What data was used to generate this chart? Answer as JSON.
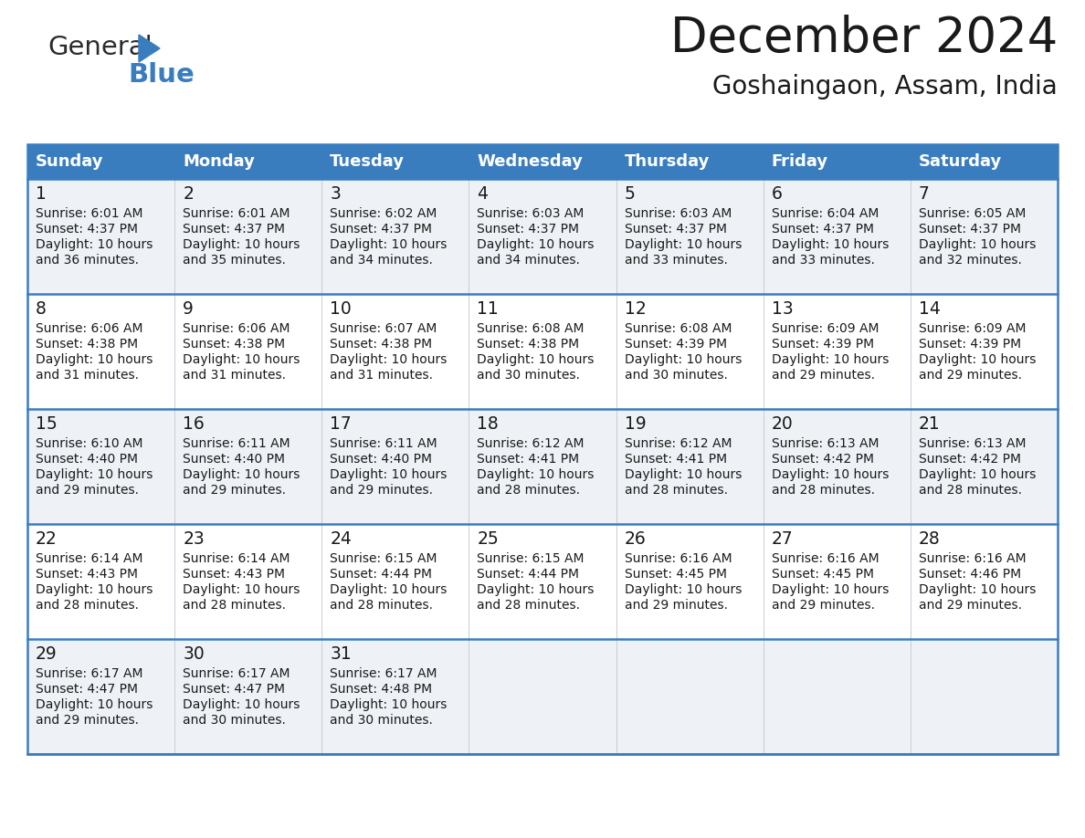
{
  "title": "December 2024",
  "subtitle": "Goshaingaon, Assam, India",
  "header_color": "#3a7dbf",
  "header_text_color": "#ffffff",
  "border_color": "#3a7dbf",
  "cell_bg_odd": "#eef2f6",
  "cell_bg_even": "#ffffff",
  "text_color": "#1a1a1a",
  "days_of_week": [
    "Sunday",
    "Monday",
    "Tuesday",
    "Wednesday",
    "Thursday",
    "Friday",
    "Saturday"
  ],
  "weeks": [
    [
      {
        "day": 1,
        "sunrise": "6:01 AM",
        "sunset": "4:37 PM",
        "daylight": "10 hours and 36 minutes."
      },
      {
        "day": 2,
        "sunrise": "6:01 AM",
        "sunset": "4:37 PM",
        "daylight": "10 hours and 35 minutes."
      },
      {
        "day": 3,
        "sunrise": "6:02 AM",
        "sunset": "4:37 PM",
        "daylight": "10 hours and 34 minutes."
      },
      {
        "day": 4,
        "sunrise": "6:03 AM",
        "sunset": "4:37 PM",
        "daylight": "10 hours and 34 minutes."
      },
      {
        "day": 5,
        "sunrise": "6:03 AM",
        "sunset": "4:37 PM",
        "daylight": "10 hours and 33 minutes."
      },
      {
        "day": 6,
        "sunrise": "6:04 AM",
        "sunset": "4:37 PM",
        "daylight": "10 hours and 33 minutes."
      },
      {
        "day": 7,
        "sunrise": "6:05 AM",
        "sunset": "4:37 PM",
        "daylight": "10 hours and 32 minutes."
      }
    ],
    [
      {
        "day": 8,
        "sunrise": "6:06 AM",
        "sunset": "4:38 PM",
        "daylight": "10 hours and 31 minutes."
      },
      {
        "day": 9,
        "sunrise": "6:06 AM",
        "sunset": "4:38 PM",
        "daylight": "10 hours and 31 minutes."
      },
      {
        "day": 10,
        "sunrise": "6:07 AM",
        "sunset": "4:38 PM",
        "daylight": "10 hours and 31 minutes."
      },
      {
        "day": 11,
        "sunrise": "6:08 AM",
        "sunset": "4:38 PM",
        "daylight": "10 hours and 30 minutes."
      },
      {
        "day": 12,
        "sunrise": "6:08 AM",
        "sunset": "4:39 PM",
        "daylight": "10 hours and 30 minutes."
      },
      {
        "day": 13,
        "sunrise": "6:09 AM",
        "sunset": "4:39 PM",
        "daylight": "10 hours and 29 minutes."
      },
      {
        "day": 14,
        "sunrise": "6:09 AM",
        "sunset": "4:39 PM",
        "daylight": "10 hours and 29 minutes."
      }
    ],
    [
      {
        "day": 15,
        "sunrise": "6:10 AM",
        "sunset": "4:40 PM",
        "daylight": "10 hours and 29 minutes."
      },
      {
        "day": 16,
        "sunrise": "6:11 AM",
        "sunset": "4:40 PM",
        "daylight": "10 hours and 29 minutes."
      },
      {
        "day": 17,
        "sunrise": "6:11 AM",
        "sunset": "4:40 PM",
        "daylight": "10 hours and 29 minutes."
      },
      {
        "day": 18,
        "sunrise": "6:12 AM",
        "sunset": "4:41 PM",
        "daylight": "10 hours and 28 minutes."
      },
      {
        "day": 19,
        "sunrise": "6:12 AM",
        "sunset": "4:41 PM",
        "daylight": "10 hours and 28 minutes."
      },
      {
        "day": 20,
        "sunrise": "6:13 AM",
        "sunset": "4:42 PM",
        "daylight": "10 hours and 28 minutes."
      },
      {
        "day": 21,
        "sunrise": "6:13 AM",
        "sunset": "4:42 PM",
        "daylight": "10 hours and 28 minutes."
      }
    ],
    [
      {
        "day": 22,
        "sunrise": "6:14 AM",
        "sunset": "4:43 PM",
        "daylight": "10 hours and 28 minutes."
      },
      {
        "day": 23,
        "sunrise": "6:14 AM",
        "sunset": "4:43 PM",
        "daylight": "10 hours and 28 minutes."
      },
      {
        "day": 24,
        "sunrise": "6:15 AM",
        "sunset": "4:44 PM",
        "daylight": "10 hours and 28 minutes."
      },
      {
        "day": 25,
        "sunrise": "6:15 AM",
        "sunset": "4:44 PM",
        "daylight": "10 hours and 28 minutes."
      },
      {
        "day": 26,
        "sunrise": "6:16 AM",
        "sunset": "4:45 PM",
        "daylight": "10 hours and 29 minutes."
      },
      {
        "day": 27,
        "sunrise": "6:16 AM",
        "sunset": "4:45 PM",
        "daylight": "10 hours and 29 minutes."
      },
      {
        "day": 28,
        "sunrise": "6:16 AM",
        "sunset": "4:46 PM",
        "daylight": "10 hours and 29 minutes."
      }
    ],
    [
      {
        "day": 29,
        "sunrise": "6:17 AM",
        "sunset": "4:47 PM",
        "daylight": "10 hours and 29 minutes."
      },
      {
        "day": 30,
        "sunrise": "6:17 AM",
        "sunset": "4:47 PM",
        "daylight": "10 hours and 30 minutes."
      },
      {
        "day": 31,
        "sunrise": "6:17 AM",
        "sunset": "4:48 PM",
        "daylight": "10 hours and 30 minutes."
      },
      null,
      null,
      null,
      null
    ]
  ]
}
